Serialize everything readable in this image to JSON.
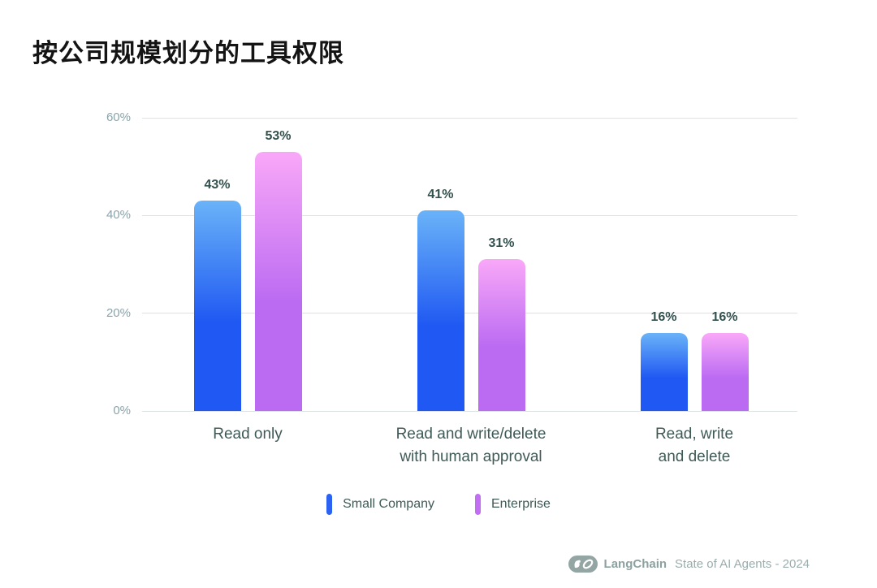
{
  "title": "按公司规模划分的工具权限",
  "chart_data": {
    "type": "bar",
    "categories": [
      "Read only",
      "Read and write/delete\nwith human approval",
      "Read, write\nand delete"
    ],
    "series": [
      {
        "name": "Small Company",
        "values": [
          43,
          41,
          16
        ],
        "color_top": "#6ab3f8",
        "color_bottom": "#1f58f2"
      },
      {
        "name": "Enterprise",
        "values": [
          53,
          31,
          16
        ],
        "color_top": "#f9a8f8",
        "color_bottom": "#bb6bf2"
      }
    ],
    "value_suffix": "%",
    "yticks": [
      0,
      20,
      40,
      60
    ],
    "ytick_labels": [
      "0%",
      "20%",
      "40%",
      "60%"
    ],
    "ylim": [
      0,
      60
    ],
    "grid": true,
    "legend_position": "bottom"
  },
  "legend": {
    "items": [
      {
        "label": "Small Company",
        "color": "#2b62f2"
      },
      {
        "label": "Enterprise",
        "color": "#c26ef2"
      }
    ]
  },
  "footer": {
    "logo_icon": "langchain-logo",
    "brand": "LangChain",
    "caption": "State of AI Agents - 2024"
  }
}
